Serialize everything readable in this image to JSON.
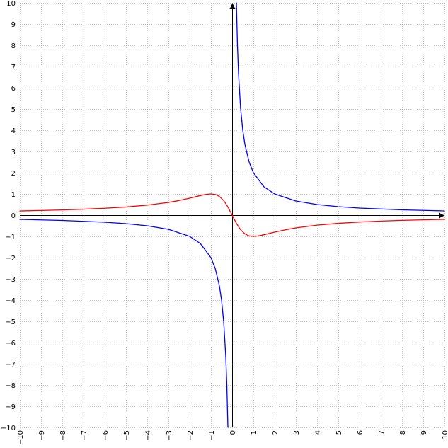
{
  "chart_data": {
    "type": "line",
    "title": "",
    "xlabel": "",
    "ylabel": "",
    "xlim": [
      -10,
      10
    ],
    "ylim": [
      -10,
      10
    ],
    "grid": true,
    "x_ticks": [
      -10,
      -9,
      -8,
      -7,
      -6,
      -5,
      -4,
      -3,
      -2,
      -1,
      0,
      1,
      2,
      3,
      4,
      5,
      6,
      7,
      8,
      9,
      10
    ],
    "y_ticks": [
      -10,
      -9,
      -8,
      -7,
      -6,
      -5,
      -4,
      -3,
      -2,
      -1,
      0,
      1,
      2,
      3,
      4,
      5,
      6,
      7,
      8,
      9,
      10
    ],
    "series": [
      {
        "color": "#0000ff",
        "points": [
          {
            "x": -10,
            "y": -0.2
          },
          {
            "x": -8,
            "y": -0.25
          },
          {
            "x": -6,
            "y": -0.333
          },
          {
            "x": -5,
            "y": -0.4
          },
          {
            "x": -4,
            "y": -0.5
          },
          {
            "x": -3,
            "y": -0.667
          },
          {
            "x": -2,
            "y": -1
          },
          {
            "x": -1.5,
            "y": -1.333
          },
          {
            "x": -1,
            "y": -2
          },
          {
            "x": -0.8,
            "y": -2.5
          },
          {
            "x": -0.6,
            "y": -3.333
          },
          {
            "x": -0.5,
            "y": -4
          },
          {
            "x": -0.4,
            "y": -5
          },
          {
            "x": -0.3,
            "y": -6.667
          },
          {
            "x": -0.25,
            "y": -8
          },
          {
            "x": -0.2,
            "y": -10
          },
          {
            "x": 0.2,
            "y": 10
          },
          {
            "x": 0.25,
            "y": 8
          },
          {
            "x": 0.3,
            "y": 6.667
          },
          {
            "x": 0.4,
            "y": 5
          },
          {
            "x": 0.5,
            "y": 4
          },
          {
            "x": 0.6,
            "y": 3.333
          },
          {
            "x": 0.8,
            "y": 2.5
          },
          {
            "x": 1,
            "y": 2
          },
          {
            "x": 1.5,
            "y": 1.333
          },
          {
            "x": 2,
            "y": 1
          },
          {
            "x": 3,
            "y": 0.667
          },
          {
            "x": 4,
            "y": 0.5
          },
          {
            "x": 5,
            "y": 0.4
          },
          {
            "x": 6,
            "y": 0.333
          },
          {
            "x": 8,
            "y": 0.25
          },
          {
            "x": 10,
            "y": 0.2
          }
        ]
      },
      {
        "color": "#ff0000",
        "points": [
          {
            "x": -10,
            "y": 0.198
          },
          {
            "x": -9,
            "y": 0.22
          },
          {
            "x": -8,
            "y": 0.246
          },
          {
            "x": -7,
            "y": 0.28
          },
          {
            "x": -6,
            "y": 0.324
          },
          {
            "x": -5,
            "y": 0.385
          },
          {
            "x": -4,
            "y": 0.471
          },
          {
            "x": -3,
            "y": 0.6
          },
          {
            "x": -2.5,
            "y": 0.69
          },
          {
            "x": -2,
            "y": 0.8
          },
          {
            "x": -1.5,
            "y": 0.923
          },
          {
            "x": -1.2,
            "y": 0.984
          },
          {
            "x": -1,
            "y": 1
          },
          {
            "x": -0.8,
            "y": 0.976
          },
          {
            "x": -0.6,
            "y": 0.882
          },
          {
            "x": -0.4,
            "y": 0.69
          },
          {
            "x": -0.2,
            "y": 0.385
          },
          {
            "x": 0,
            "y": 0
          },
          {
            "x": 0.2,
            "y": -0.385
          },
          {
            "x": 0.4,
            "y": -0.69
          },
          {
            "x": 0.6,
            "y": -0.882
          },
          {
            "x": 0.8,
            "y": -0.976
          },
          {
            "x": 1,
            "y": -1
          },
          {
            "x": 1.2,
            "y": -0.984
          },
          {
            "x": 1.5,
            "y": -0.923
          },
          {
            "x": 2,
            "y": -0.8
          },
          {
            "x": 2.5,
            "y": -0.69
          },
          {
            "x": 3,
            "y": -0.6
          },
          {
            "x": 4,
            "y": -0.471
          },
          {
            "x": 5,
            "y": -0.385
          },
          {
            "x": 6,
            "y": -0.324
          },
          {
            "x": 7,
            "y": -0.28
          },
          {
            "x": 8,
            "y": -0.246
          },
          {
            "x": 9,
            "y": -0.22
          },
          {
            "x": 10,
            "y": -0.198
          }
        ]
      }
    ]
  }
}
